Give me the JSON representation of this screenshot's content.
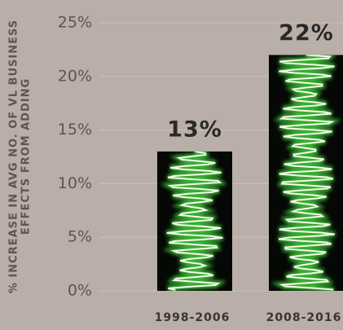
{
  "chart_data": {
    "type": "bar",
    "y_axis_label": [
      "% INCREASE IN AVG NO. OF VL BUSINESS",
      "EFFECTS FROM ADDING"
    ],
    "categories": [
      "1998-2006",
      "2008-2016"
    ],
    "values": [
      13,
      22
    ],
    "value_labels": [
      "13%",
      "22%"
    ],
    "color": "#050805",
    "ylim": [
      0,
      25
    ],
    "yticks": [
      {
        "value": 0,
        "label": "0%"
      },
      {
        "value": 5,
        "label": "5%"
      },
      {
        "value": 10,
        "label": "10%"
      },
      {
        "value": 15,
        "label": "15%"
      },
      {
        "value": 20,
        "label": "20%"
      },
      {
        "value": 25,
        "label": "25%"
      }
    ],
    "grid": true
  }
}
